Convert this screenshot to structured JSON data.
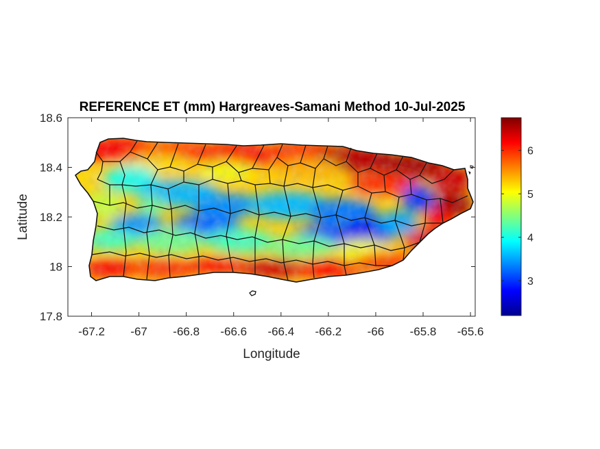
{
  "title": "REFERENCE ET (mm) Hargreaves-Samani Method  10-Jul-2025",
  "x_axis": {
    "label": "Longitude",
    "range": [
      -67.3,
      -65.58
    ],
    "ticks": [
      -67.2,
      -67,
      -66.8,
      -66.6,
      -66.4,
      -66.2,
      -66,
      -65.8,
      -65.6
    ],
    "tick_labels": [
      "-67.2",
      "-67",
      "-66.8",
      "-66.6",
      "-66.4",
      "-66.2",
      "-66",
      "-65.8",
      "-65.6"
    ]
  },
  "y_axis": {
    "label": "Latitude",
    "range": [
      17.8,
      18.6
    ],
    "ticks": [
      17.8,
      18,
      18.2,
      18.4,
      18.6
    ],
    "tick_labels": [
      "17.8",
      "18",
      "18.2",
      "18.4",
      "18.6"
    ]
  },
  "colorbar": {
    "colormap": "jet",
    "range": [
      2.2,
      6.75
    ],
    "ticks": [
      3,
      4,
      5,
      6
    ],
    "tick_labels": [
      "3",
      "4",
      "5",
      "6"
    ]
  },
  "map": {
    "region": "Puerto Rico",
    "variable": "Reference evapotranspiration (mm)",
    "boundaries": "municipality outlines in black",
    "pattern": "high values (6-6.7) along north, south and east coasts; low values (2.5-4) across central interior"
  }
}
